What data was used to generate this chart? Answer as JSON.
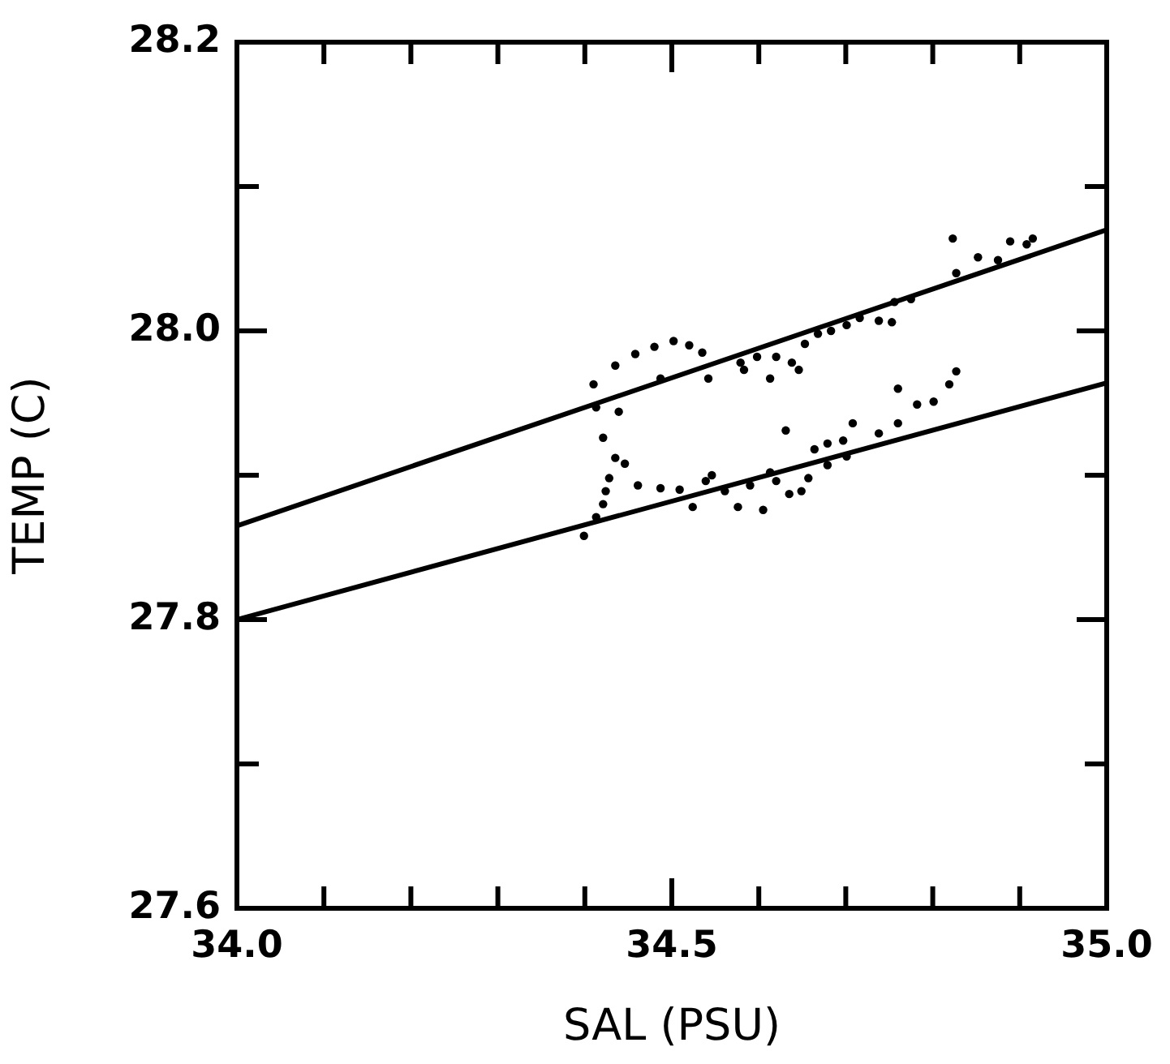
{
  "chart_data": {
    "type": "scatter",
    "xlabel": "SAL (PSU)",
    "ylabel": "TEMP (C)",
    "xlim": [
      34.0,
      35.0
    ],
    "ylim": [
      27.6,
      28.2
    ],
    "xticks": [
      {
        "value": 34.0,
        "label": "34.0"
      },
      {
        "value": 34.1,
        "label": null
      },
      {
        "value": 34.2,
        "label": null
      },
      {
        "value": 34.3,
        "label": null
      },
      {
        "value": 34.4,
        "label": null
      },
      {
        "value": 34.5,
        "label": "34.5"
      },
      {
        "value": 34.6,
        "label": null
      },
      {
        "value": 34.7,
        "label": null
      },
      {
        "value": 34.8,
        "label": null
      },
      {
        "value": 34.9,
        "label": null
      },
      {
        "value": 35.0,
        "label": "35.0"
      }
    ],
    "yticks": [
      {
        "value": 27.6,
        "label": "27.6"
      },
      {
        "value": 27.7,
        "label": null
      },
      {
        "value": 27.8,
        "label": "27.8"
      },
      {
        "value": 27.9,
        "label": null
      },
      {
        "value": 28.0,
        "label": "28.0"
      },
      {
        "value": 28.1,
        "label": null
      },
      {
        "value": 28.2,
        "label": "28.2"
      }
    ],
    "grid": false,
    "marker": "circle",
    "series": [
      {
        "color": "#000000",
        "x": [
          34.41,
          34.435,
          34.458,
          34.48,
          34.502,
          34.52,
          34.535,
          34.487,
          34.542,
          34.413,
          34.439,
          34.421,
          34.435,
          34.446,
          34.428,
          34.424,
          34.421,
          34.413,
          34.399,
          34.461,
          34.487,
          34.509,
          34.524,
          34.539,
          34.546,
          34.561,
          34.576,
          34.59,
          34.605,
          34.62,
          34.635,
          34.649,
          34.657,
          34.613,
          34.631,
          34.664,
          34.679,
          34.697,
          34.708,
          34.679,
          34.701,
          34.738,
          34.76,
          34.76,
          34.782,
          34.801,
          34.827,
          34.819,
          34.579,
          34.583,
          34.598,
          34.613,
          34.62,
          34.638,
          34.646,
          34.653,
          34.668,
          34.683,
          34.701,
          34.716,
          34.738,
          34.753,
          34.756,
          34.775,
          34.827,
          34.852,
          34.875,
          34.889,
          34.908,
          34.915,
          34.823
        ],
        "values": [
          27.963,
          27.976,
          27.984,
          27.989,
          27.993,
          27.99,
          27.985,
          27.967,
          27.967,
          27.947,
          27.944,
          27.926,
          27.912,
          27.908,
          27.898,
          27.889,
          27.88,
          27.871,
          27.858,
          27.893,
          27.891,
          27.89,
          27.878,
          27.896,
          27.9,
          27.889,
          27.878,
          27.893,
          27.876,
          27.896,
          27.887,
          27.889,
          27.898,
          27.902,
          27.931,
          27.918,
          27.922,
          27.924,
          27.936,
          27.907,
          27.913,
          27.929,
          27.936,
          27.96,
          27.949,
          27.951,
          27.972,
          27.963,
          27.978,
          27.973,
          27.982,
          27.967,
          27.982,
          27.978,
          27.973,
          27.991,
          27.998,
          28.0,
          28.004,
          28.009,
          28.007,
          28.006,
          28.02,
          28.022,
          28.04,
          28.051,
          28.049,
          28.062,
          28.06,
          28.064,
          28.064
        ]
      },
      {
        "type": "line",
        "marker": "none",
        "color": "#000000",
        "x": [
          34.0,
          35.0
        ],
        "values": [
          27.865,
          28.07
        ]
      },
      {
        "type": "line",
        "marker": "none",
        "color": "#000000",
        "x": [
          34.0,
          35.0
        ],
        "values": [
          27.8,
          27.964
        ]
      }
    ]
  }
}
